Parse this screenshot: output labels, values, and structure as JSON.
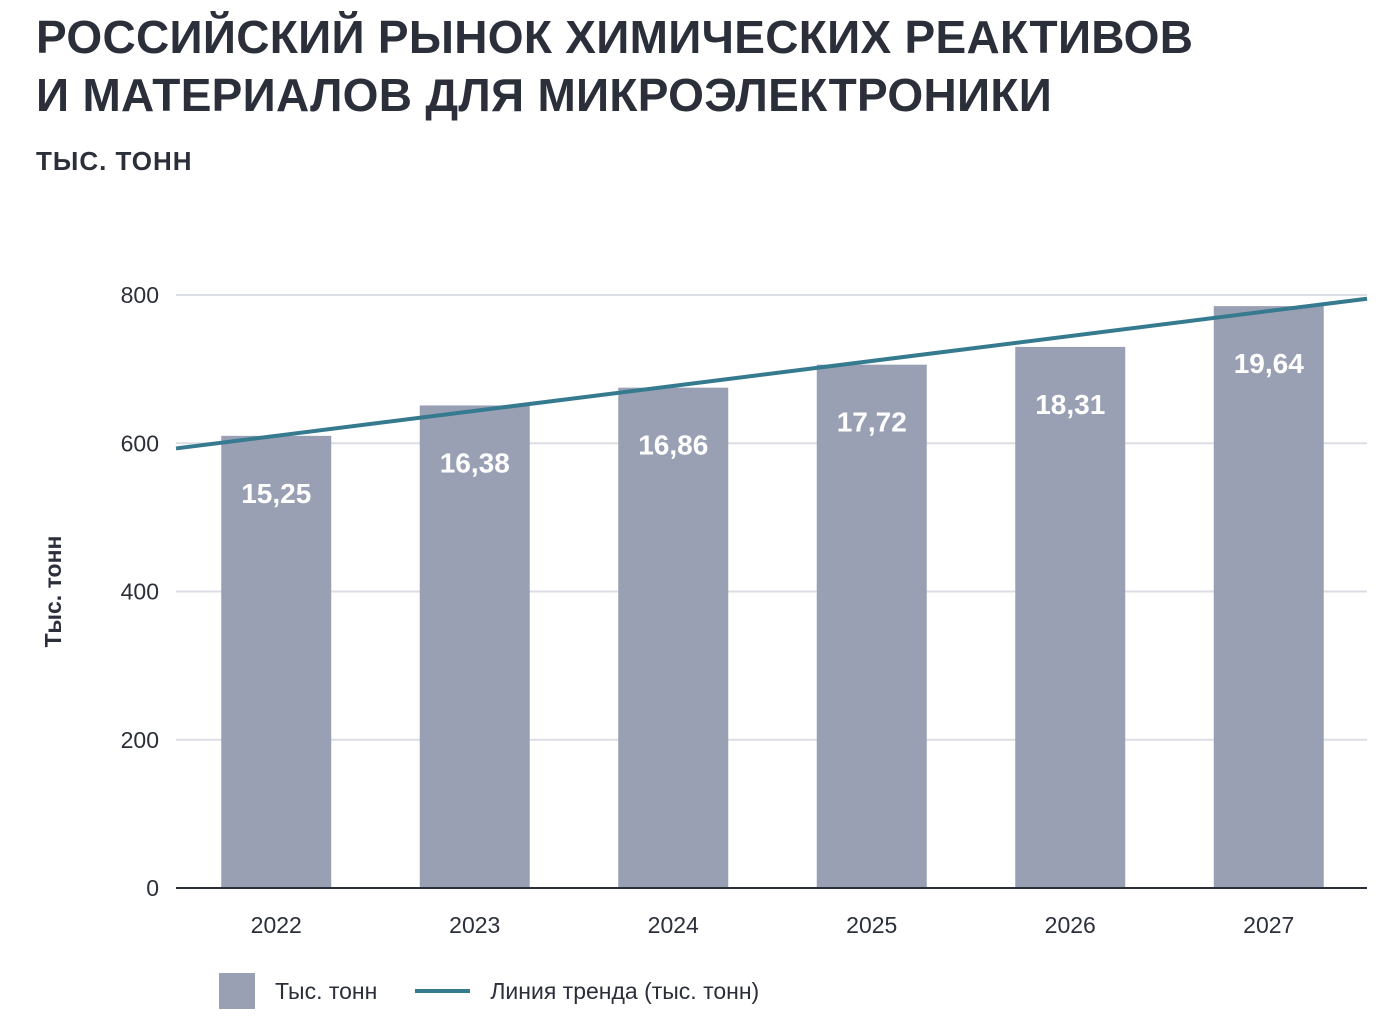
{
  "title_line1": "РОССИЙСКИЙ РЫНОК ХИМИЧЕСКИХ РЕАКТИВОВ",
  "title_line2": "И МАТЕРИАЛОВ ДЛЯ МИКРОЭЛЕКТРОНИКИ",
  "subtitle": "ТЫС. ТОНН",
  "colors": {
    "bar": "#9aa0b4",
    "trend": "#357a8e",
    "grid": "#dcdee6",
    "axis": "#2b2f3a"
  },
  "chart_data": {
    "type": "bar",
    "categories": [
      "2022",
      "2023",
      "2024",
      "2025",
      "2026",
      "2027"
    ],
    "series": [
      {
        "name": "Тыс. тонн",
        "values": [
          610,
          651,
          675,
          706,
          730,
          785
        ]
      },
      {
        "name": "Линия тренда (тыс. тонн)",
        "type": "line",
        "start": 593,
        "end": 795
      }
    ],
    "data_labels": [
      "15,25",
      "16,38",
      "16,86",
      "17,72",
      "18,31",
      "19,64"
    ],
    "ylabel": "Тыс. тонн",
    "xlabel": "",
    "ylim": [
      0,
      800
    ],
    "yticks": [
      "0",
      "200",
      "400",
      "600",
      "800"
    ],
    "grid": true,
    "legend_position": "bottom-left"
  }
}
